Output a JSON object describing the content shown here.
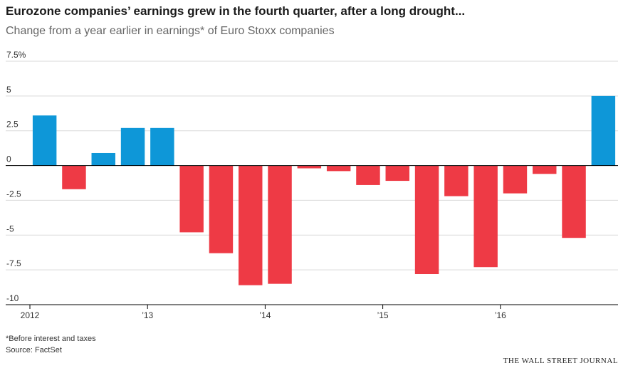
{
  "header": {
    "title": "Eurozone companies’ earnings grew in the fourth quarter, after a long drought...",
    "subtitle": "Change from a year earlier in earnings* of Euro Stoxx companies"
  },
  "footer": {
    "note": "*Before interest and taxes",
    "source": "Source: FactSet",
    "credit": "THE WALL STREET JOURNAL"
  },
  "colors": {
    "positive": "#0e97d8",
    "negative": "#ee3a45"
  },
  "chart_data": {
    "type": "bar",
    "title": "Eurozone companies’ earnings grew in the fourth quarter, after a long drought...",
    "subtitle": "Change from a year earlier in earnings* of Euro Stoxx companies",
    "categories": [
      "Q1 2012",
      "Q2 2012",
      "Q3 2012",
      "Q4 2012",
      "Q1 2013",
      "Q2 2013",
      "Q3 2013",
      "Q4 2013",
      "Q1 2014",
      "Q2 2014",
      "Q3 2014",
      "Q4 2014",
      "Q1 2015",
      "Q2 2015",
      "Q3 2015",
      "Q4 2015",
      "Q1 2016",
      "Q2 2016",
      "Q3 2016",
      "Q4 2016"
    ],
    "values": [
      3.6,
      -1.7,
      0.9,
      2.7,
      2.7,
      -4.8,
      -6.3,
      -8.6,
      -8.5,
      -0.2,
      -0.4,
      -1.4,
      -1.1,
      -7.8,
      -2.2,
      -7.3,
      -2.0,
      -0.6,
      -5.2,
      5.0
    ],
    "ylim": [
      -10,
      7.5
    ],
    "yticks": [
      7.5,
      5,
      2.5,
      0,
      -2.5,
      -5,
      -7.5,
      -10
    ],
    "ytick_labels": [
      "7.5%",
      "5",
      "2.5",
      "0",
      "-2.5",
      "-5",
      "-7.5",
      "-10"
    ],
    "xticks": [
      {
        "label": "2012",
        "index": 0
      },
      {
        "label": "’13",
        "index": 4
      },
      {
        "label": "’14",
        "index": 8
      },
      {
        "label": "’15",
        "index": 12
      },
      {
        "label": "’16",
        "index": 16
      }
    ],
    "grid": true,
    "xlabel": "",
    "ylabel": ""
  }
}
